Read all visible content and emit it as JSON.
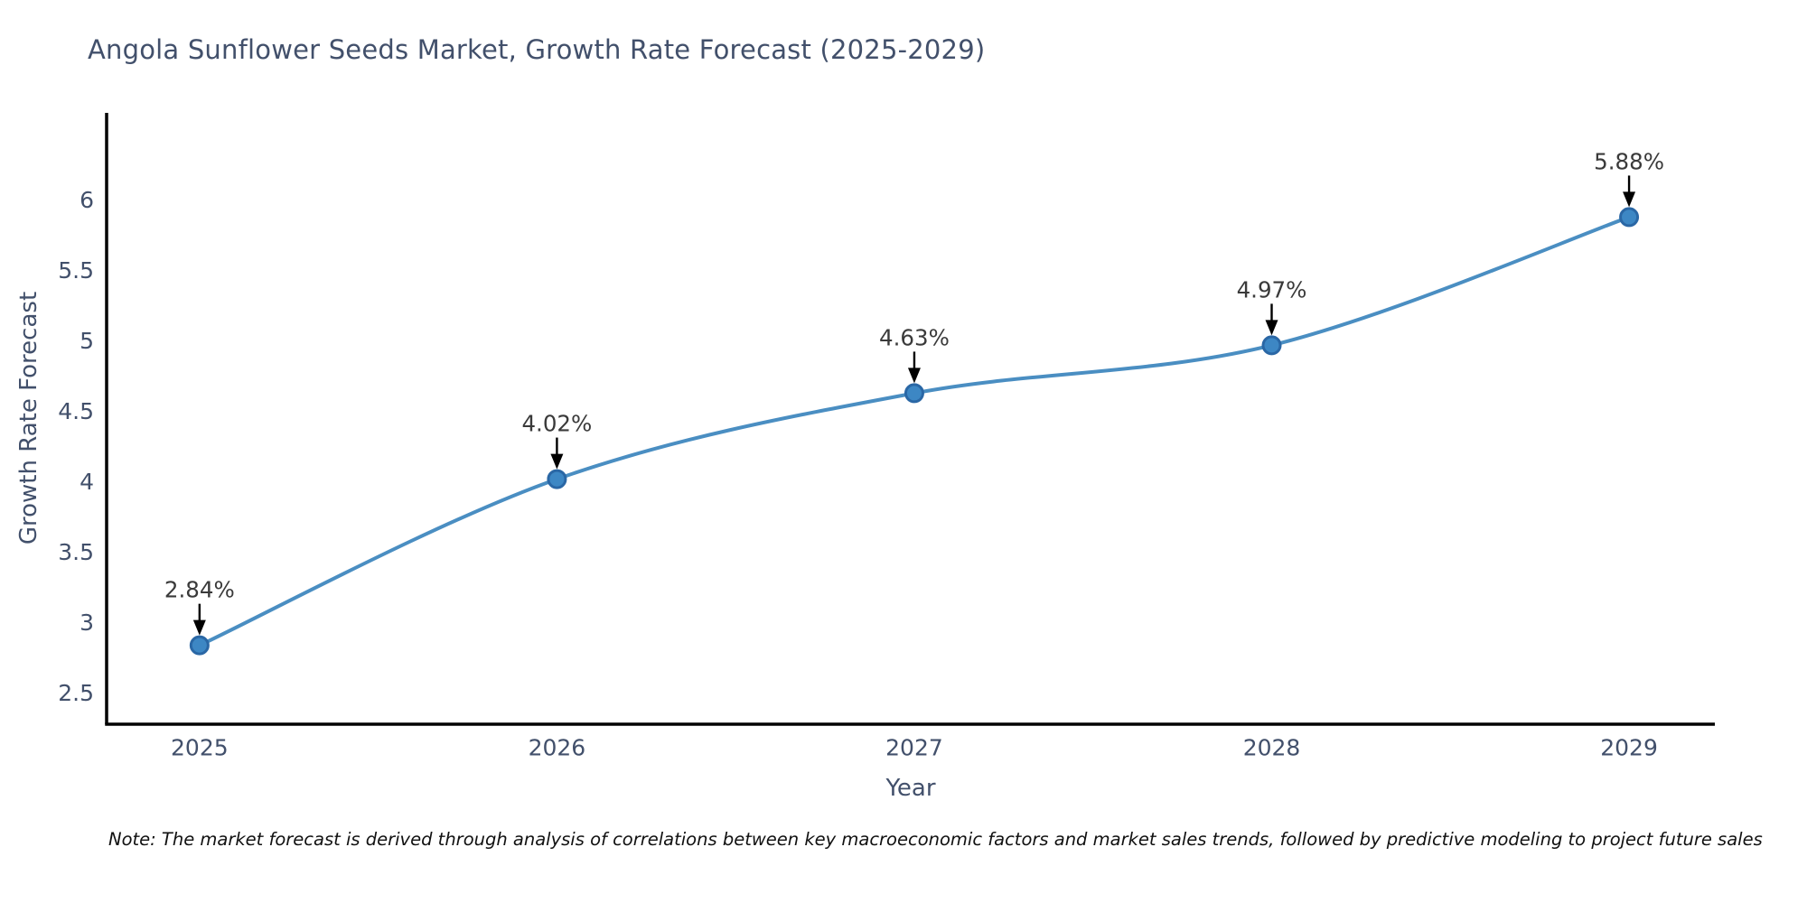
{
  "chart": {
    "note": "Note: The market forecast is derived through analysis of correlations between key macroeconomic factors and market sales trends, followed by predictive modeling to project future sales",
    "colors": {
      "line": "#4a8ec2",
      "marker_fill": "#3d87c4",
      "marker_edge": "#2a67a5",
      "axis": "#000000",
      "axis_text": "#42506b",
      "annotation_text": "#3a3a3a",
      "arrow": "#000000"
    }
  },
  "chart_data": {
    "type": "line",
    "title": "Angola Sunflower Seeds Market, Growth Rate Forecast (2025-2029)",
    "xlabel": "Year",
    "ylabel": "Growth Rate Forecast",
    "x": [
      2025,
      2026,
      2027,
      2028,
      2029
    ],
    "categories": [
      "2025",
      "2026",
      "2027",
      "2028",
      "2029"
    ],
    "series": [
      {
        "name": "Growth Rate Forecast",
        "values": [
          2.84,
          4.02,
          4.63,
          4.97,
          5.88
        ]
      }
    ],
    "point_labels": [
      "2.84%",
      "4.02%",
      "4.63%",
      "4.97%",
      "5.88%"
    ],
    "yticks": [
      2.5,
      3,
      3.5,
      4,
      4.5,
      5,
      5.5,
      6
    ],
    "ytick_labels": [
      "2.5",
      "3",
      "3.5",
      "4",
      "4.5",
      "5",
      "5.5",
      "6"
    ],
    "ylim": [
      2.28,
      6.62
    ],
    "xlim": [
      2024.74,
      2029.24
    ],
    "grid": false,
    "legend": "none",
    "line_smooth": true
  }
}
